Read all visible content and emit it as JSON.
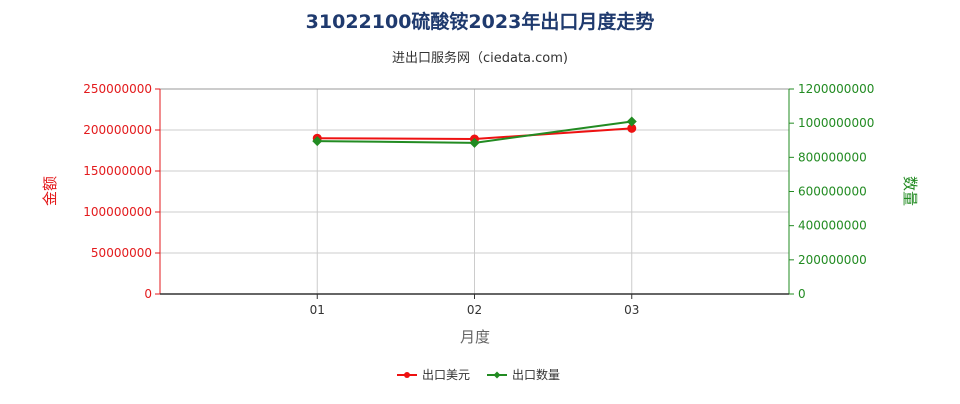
{
  "chart_data": {
    "type": "line",
    "title": "31022100硫酸铵2023年出口月度走势",
    "subtitle": "进出口服务网（ciedata.com)",
    "xlabel": "月度",
    "ylabel_left": "金额",
    "ylabel_right": "数量",
    "categories": [
      "01",
      "02",
      "03"
    ],
    "x_range": [
      0,
      4
    ],
    "ylim_left": [
      0,
      250000000
    ],
    "ylim_right": [
      0,
      1200000000
    ],
    "yticks_left": [
      "0",
      "50000000",
      "100000000",
      "150000000",
      "200000000",
      "250000000"
    ],
    "yticks_right": [
      "0",
      "200000000",
      "400000000",
      "600000000",
      "800000000",
      "1000000000",
      "1200000000"
    ],
    "grid": true,
    "legend_position": "bottom",
    "series": [
      {
        "name": "出口美元",
        "axis": "left",
        "color": "#ee1111",
        "marker": "circle",
        "values": [
          190000000,
          189000000,
          202000000
        ]
      },
      {
        "name": "出口数量",
        "axis": "right",
        "color": "#228b22",
        "marker": "diamond",
        "values": [
          895000000,
          885000000,
          1010000000
        ]
      }
    ],
    "colors": {
      "left_axis": "#e31a1c",
      "right_axis": "#228b22",
      "title": "#1f3a6e",
      "grid": "#cccccc"
    }
  }
}
